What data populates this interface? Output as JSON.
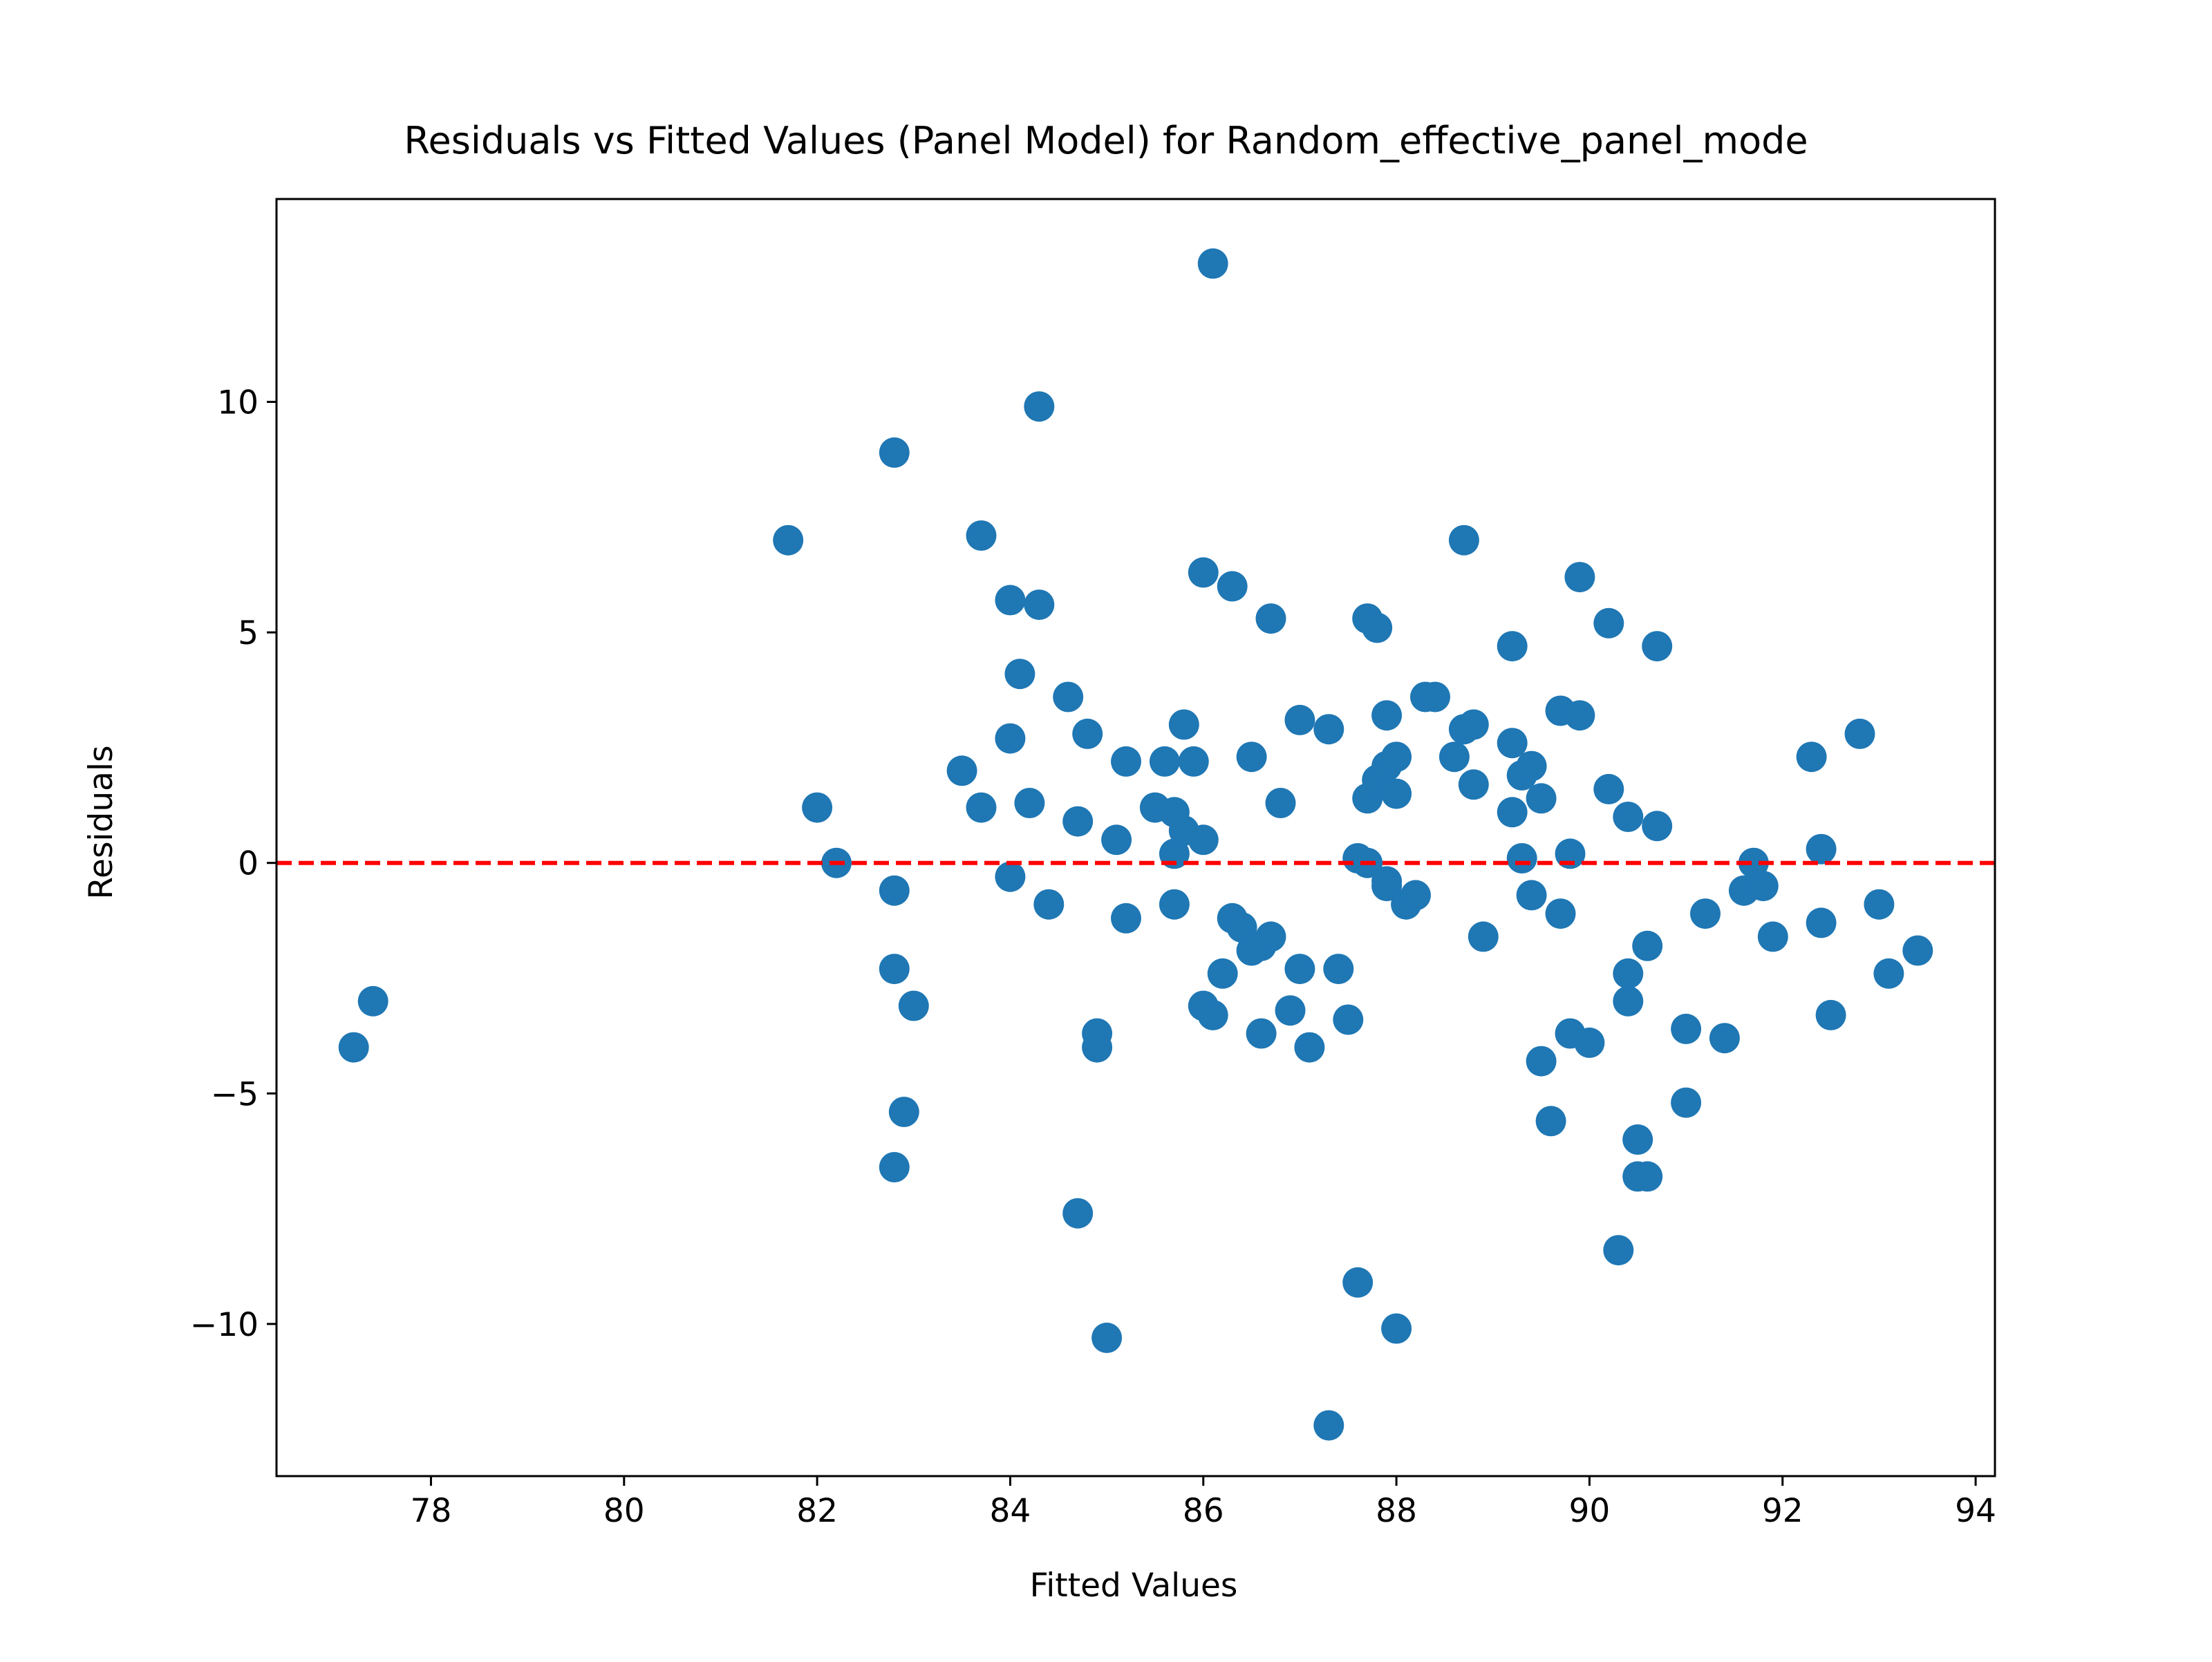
{
  "chart_data": {
    "type": "scatter",
    "title": "Residuals vs Fitted Values (Panel Model) for Random_effective_panel_mode",
    "xlabel": "Fitted Values",
    "ylabel": "Residuals",
    "xlim": [
      76.4,
      94.2
    ],
    "ylim": [
      -13.3,
      14.4
    ],
    "xticks": [
      78,
      80,
      82,
      84,
      86,
      88,
      90,
      92,
      94
    ],
    "yticks": [
      -10,
      -5,
      0,
      5,
      10
    ],
    "xtick_labels": [
      "78",
      "80",
      "82",
      "84",
      "86",
      "88",
      "90",
      "92",
      "94"
    ],
    "ytick_labels": [
      "−10",
      "−5",
      "0",
      "5",
      "10"
    ],
    "grid": false,
    "point_color": "#1f77b4",
    "reference_line": {
      "y": 0,
      "color": "#ff0000",
      "style": "dashed"
    },
    "points": [
      [
        77.2,
        -4.0
      ],
      [
        77.4,
        -3.0
      ],
      [
        81.7,
        7.0
      ],
      [
        82.0,
        1.2
      ],
      [
        82.2,
        0.0
      ],
      [
        82.8,
        8.9
      ],
      [
        82.8,
        -0.6
      ],
      [
        82.8,
        -2.3
      ],
      [
        82.9,
        -5.4
      ],
      [
        83.0,
        -3.1
      ],
      [
        82.8,
        -6.6
      ],
      [
        83.5,
        2.0
      ],
      [
        83.7,
        1.2
      ],
      [
        83.7,
        7.1
      ],
      [
        84.0,
        5.7
      ],
      [
        84.1,
        4.1
      ],
      [
        84.0,
        2.7
      ],
      [
        84.2,
        1.3
      ],
      [
        84.0,
        -0.3
      ],
      [
        84.3,
        9.9
      ],
      [
        84.3,
        5.6
      ],
      [
        84.4,
        -0.9
      ],
      [
        84.6,
        3.6
      ],
      [
        84.7,
        0.9
      ],
      [
        84.8,
        2.8
      ],
      [
        84.9,
        -3.7
      ],
      [
        84.9,
        -4.0
      ],
      [
        84.7,
        -7.6
      ],
      [
        85.0,
        -10.3
      ],
      [
        85.1,
        0.5
      ],
      [
        85.2,
        -1.2
      ],
      [
        85.2,
        2.2
      ],
      [
        85.5,
        1.2
      ],
      [
        85.6,
        2.2
      ],
      [
        85.7,
        1.1
      ],
      [
        85.7,
        0.2
      ],
      [
        85.7,
        -0.9
      ],
      [
        85.8,
        3.0
      ],
      [
        85.8,
        0.7
      ],
      [
        85.9,
        2.2
      ],
      [
        86.0,
        0.5
      ],
      [
        86.0,
        6.3
      ],
      [
        86.1,
        13.0
      ],
      [
        86.0,
        -3.1
      ],
      [
        86.1,
        -3.3
      ],
      [
        86.2,
        -2.4
      ],
      [
        86.3,
        -1.2
      ],
      [
        86.3,
        6.0
      ],
      [
        86.4,
        -1.4
      ],
      [
        86.5,
        2.3
      ],
      [
        86.5,
        -1.9
      ],
      [
        86.6,
        -1.8
      ],
      [
        86.7,
        -1.6
      ],
      [
        86.6,
        -3.7
      ],
      [
        86.7,
        5.3
      ],
      [
        86.8,
        1.3
      ],
      [
        86.9,
        -3.2
      ],
      [
        87.0,
        3.1
      ],
      [
        87.0,
        -2.3
      ],
      [
        87.1,
        -4.0
      ],
      [
        87.3,
        2.9
      ],
      [
        87.4,
        -2.3
      ],
      [
        87.5,
        -3.4
      ],
      [
        87.6,
        0.1
      ],
      [
        87.6,
        -9.1
      ],
      [
        87.3,
        -12.2
      ],
      [
        87.7,
        5.3
      ],
      [
        87.7,
        1.4
      ],
      [
        87.7,
        0.0
      ],
      [
        87.8,
        1.8
      ],
      [
        87.8,
        5.1
      ],
      [
        87.9,
        3.2
      ],
      [
        87.9,
        2.1
      ],
      [
        87.9,
        -0.4
      ],
      [
        87.9,
        -0.5
      ],
      [
        88.0,
        2.3
      ],
      [
        88.0,
        1.5
      ],
      [
        88.1,
        -0.9
      ],
      [
        88.2,
        -0.7
      ],
      [
        88.3,
        3.6
      ],
      [
        88.4,
        3.6
      ],
      [
        88.0,
        -10.1
      ],
      [
        88.6,
        2.3
      ],
      [
        88.7,
        7.0
      ],
      [
        88.7,
        2.9
      ],
      [
        88.8,
        3.0
      ],
      [
        88.8,
        1.7
      ],
      [
        88.9,
        -1.6
      ],
      [
        89.2,
        4.7
      ],
      [
        89.2,
        1.1
      ],
      [
        89.2,
        2.6
      ],
      [
        89.3,
        1.9
      ],
      [
        89.3,
        0.1
      ],
      [
        89.4,
        -0.7
      ],
      [
        89.4,
        2.1
      ],
      [
        89.5,
        1.4
      ],
      [
        89.5,
        -4.3
      ],
      [
        89.6,
        -5.6
      ],
      [
        89.7,
        -1.1
      ],
      [
        89.7,
        3.3
      ],
      [
        89.8,
        0.2
      ],
      [
        89.8,
        -3.7
      ],
      [
        89.9,
        6.2
      ],
      [
        89.9,
        3.2
      ],
      [
        90.0,
        -3.9
      ],
      [
        90.2,
        1.6
      ],
      [
        90.2,
        5.2
      ],
      [
        90.3,
        -8.4
      ],
      [
        90.4,
        -3.0
      ],
      [
        90.4,
        -2.4
      ],
      [
        90.4,
        1.0
      ],
      [
        90.5,
        -6.0
      ],
      [
        90.5,
        -6.8
      ],
      [
        90.6,
        -6.8
      ],
      [
        90.6,
        -1.8
      ],
      [
        90.7,
        4.7
      ],
      [
        90.7,
        0.8
      ],
      [
        91.0,
        -3.6
      ],
      [
        91.0,
        -5.2
      ],
      [
        91.2,
        -1.1
      ],
      [
        91.4,
        -3.8
      ],
      [
        91.6,
        -0.6
      ],
      [
        91.7,
        0.0
      ],
      [
        91.8,
        -0.5
      ],
      [
        91.9,
        -1.6
      ],
      [
        92.3,
        2.3
      ],
      [
        92.4,
        0.3
      ],
      [
        92.4,
        -1.3
      ],
      [
        92.5,
        -3.3
      ],
      [
        92.8,
        2.8
      ],
      [
        93.0,
        -0.9
      ],
      [
        93.1,
        -2.4
      ],
      [
        93.4,
        -1.9
      ]
    ]
  }
}
